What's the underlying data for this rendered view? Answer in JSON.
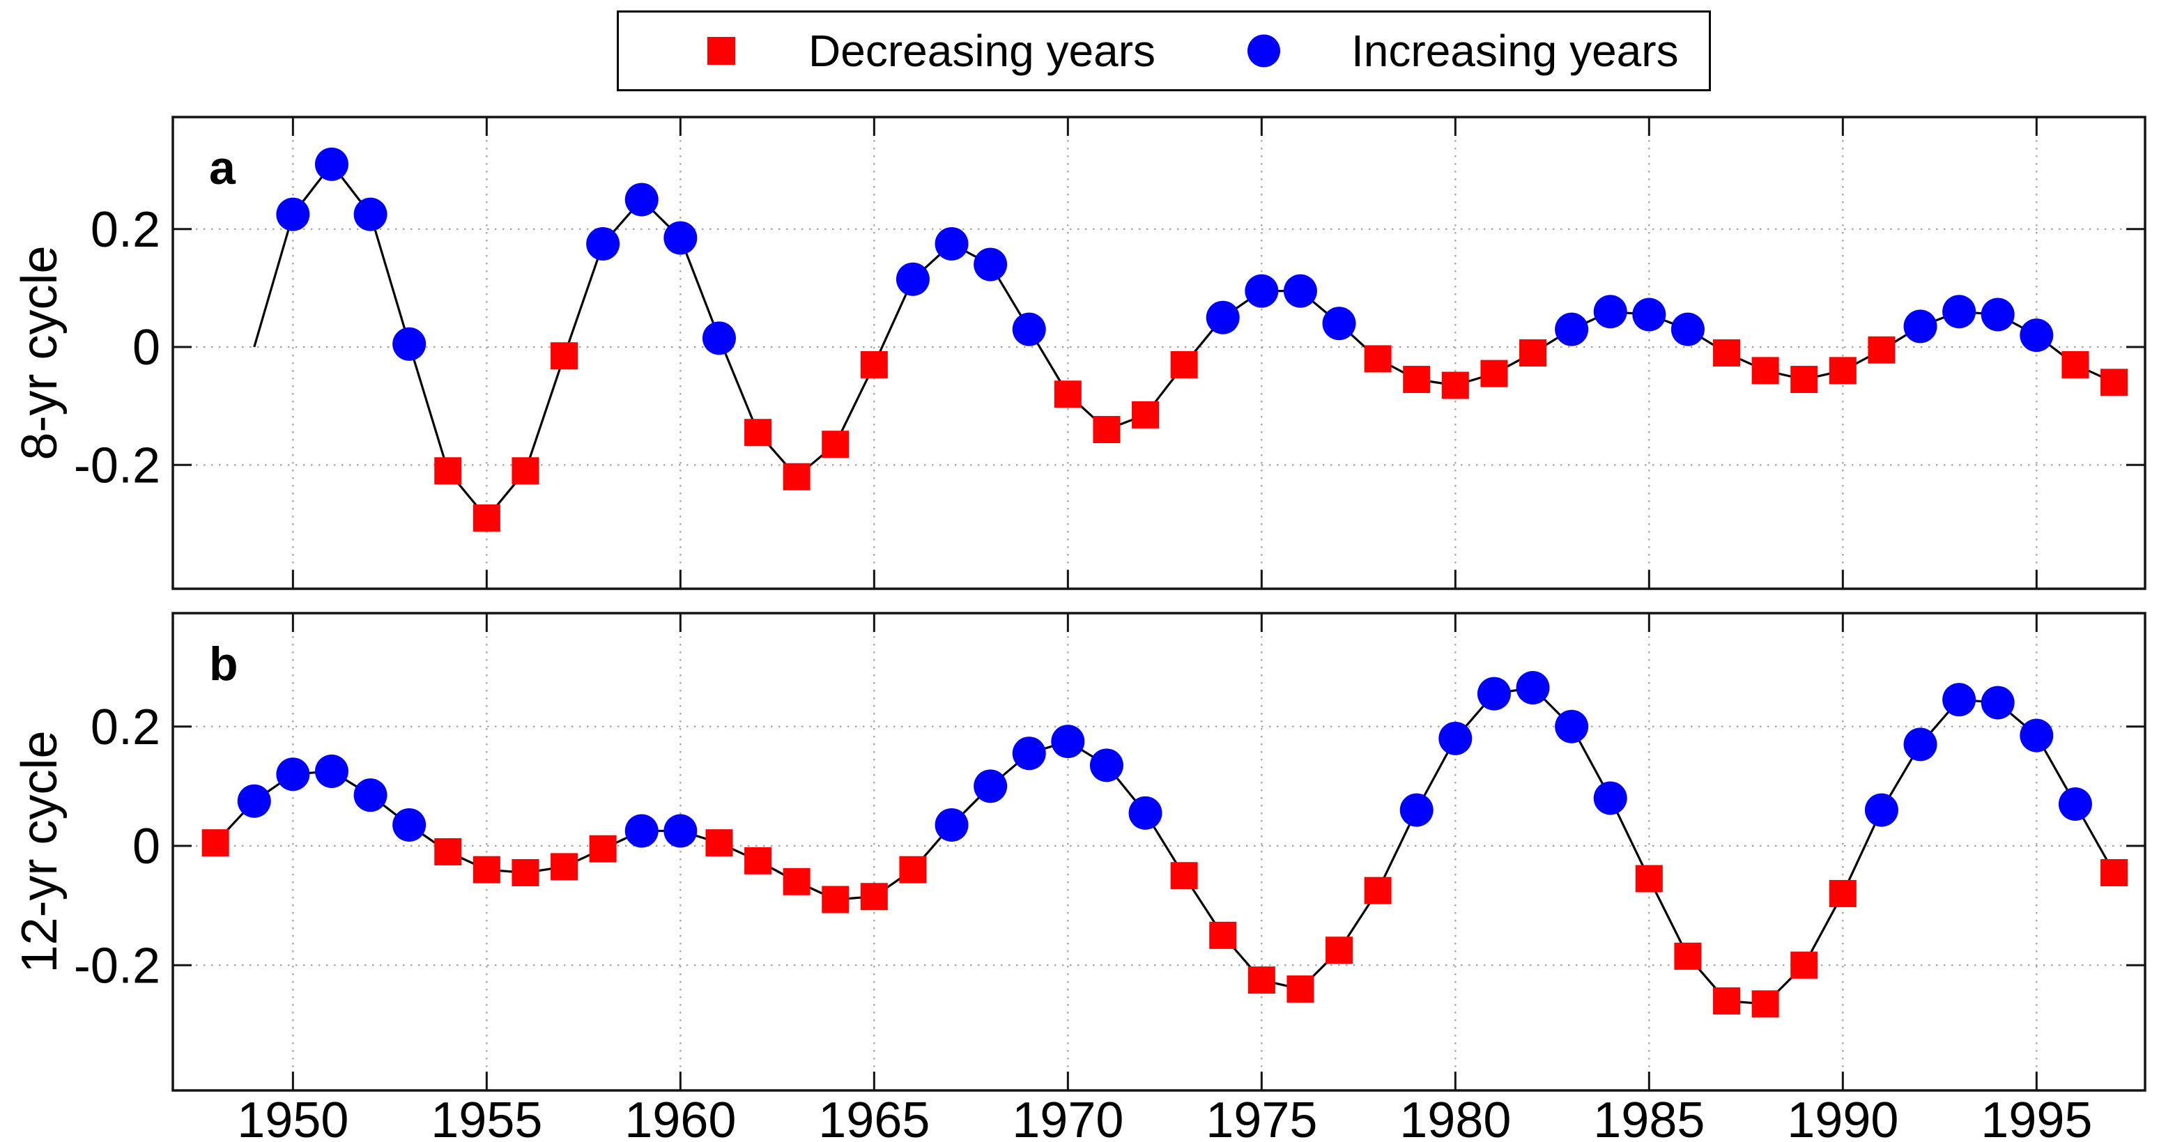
{
  "figure": {
    "background": "#ffffff",
    "legend": {
      "items": [
        {
          "label": "Decreasing years",
          "marker": "square",
          "color": "#ff0000"
        },
        {
          "label": "Increasing years",
          "marker": "circle",
          "color": "#0000ff"
        }
      ]
    }
  },
  "colors": {
    "increasing_marker": "#0000ff",
    "decreasing_marker": "#ff0000",
    "line": "#000000",
    "grid": "#a0a0a0",
    "axis": "#141414",
    "text": "#000000",
    "background": "#ffffff"
  },
  "chart_data": [
    {
      "type": "line",
      "panel_label": "a",
      "ylabel": "8-yr cycle",
      "xlim": [
        1946.9,
        1997.8
      ],
      "ylim": [
        -0.41,
        0.39
      ],
      "xticks": [
        1950,
        1955,
        1960,
        1965,
        1970,
        1975,
        1980,
        1985,
        1990,
        1995
      ],
      "yticks": [
        -0.2,
        0,
        0.2
      ],
      "ytick_labels": [
        "-0.2",
        "0",
        "0.2"
      ],
      "grid": true,
      "show_xticklabels": false,
      "x": [
        1949,
        1950,
        1951,
        1952,
        1953,
        1954,
        1955,
        1956,
        1957,
        1958,
        1959,
        1960,
        1961,
        1962,
        1963,
        1964,
        1965,
        1966,
        1967,
        1968,
        1969,
        1970,
        1971,
        1972,
        1973,
        1974,
        1975,
        1976,
        1977,
        1978,
        1979,
        1980,
        1981,
        1982,
        1983,
        1984,
        1985,
        1986,
        1987,
        1988,
        1989,
        1990,
        1991,
        1992,
        1993,
        1994,
        1995,
        1996,
        1997
      ],
      "y": [
        0,
        0.225,
        0.31,
        0.225,
        0.005,
        -0.21,
        -0.29,
        -0.21,
        -0.015,
        0.175,
        0.25,
        0.185,
        0.015,
        -0.145,
        -0.22,
        -0.165,
        -0.03,
        0.115,
        0.175,
        0.14,
        0.03,
        -0.08,
        -0.14,
        -0.115,
        -0.03,
        0.05,
        0.095,
        0.095,
        0.04,
        -0.02,
        -0.055,
        -0.065,
        -0.045,
        -0.01,
        0.03,
        0.06,
        0.055,
        0.03,
        -0.01,
        -0.04,
        -0.055,
        -0.04,
        -0.005,
        0.035,
        0.06,
        0.055,
        0.02,
        -0.03,
        -0.06
      ],
      "marker": [
        "none",
        "inc",
        "inc",
        "inc",
        "inc",
        "dec",
        "dec",
        "dec",
        "dec",
        "inc",
        "inc",
        "inc",
        "inc",
        "dec",
        "dec",
        "dec",
        "dec",
        "inc",
        "inc",
        "inc",
        "inc",
        "dec",
        "dec",
        "dec",
        "dec",
        "inc",
        "inc",
        "inc",
        "inc",
        "dec",
        "dec",
        "dec",
        "dec",
        "dec",
        "inc",
        "inc",
        "inc",
        "inc",
        "dec",
        "dec",
        "dec",
        "dec",
        "dec",
        "inc",
        "inc",
        "inc",
        "inc",
        "dec",
        "dec"
      ]
    },
    {
      "type": "line",
      "panel_label": "b",
      "ylabel": "12-yr cycle",
      "xlim": [
        1946.9,
        1997.8
      ],
      "ylim": [
        -0.41,
        0.39
      ],
      "xticks": [
        1950,
        1955,
        1960,
        1965,
        1970,
        1975,
        1980,
        1985,
        1990,
        1995
      ],
      "yticks": [
        -0.2,
        0,
        0.2
      ],
      "ytick_labels": [
        "-0.2",
        "0",
        "0.2"
      ],
      "xtick_labels": [
        "1950",
        "1955",
        "1960",
        "1965",
        "1970",
        "1975",
        "1980",
        "1985",
        "1990",
        "1995"
      ],
      "grid": true,
      "show_xticklabels": true,
      "x": [
        1948,
        1949,
        1950,
        1951,
        1952,
        1953,
        1954,
        1955,
        1956,
        1957,
        1958,
        1959,
        1960,
        1961,
        1962,
        1963,
        1964,
        1965,
        1966,
        1967,
        1968,
        1969,
        1970,
        1971,
        1972,
        1973,
        1974,
        1975,
        1976,
        1977,
        1978,
        1979,
        1980,
        1981,
        1982,
        1983,
        1984,
        1985,
        1986,
        1987,
        1988,
        1989,
        1990,
        1991,
        1992,
        1993,
        1994,
        1995,
        1996,
        1997
      ],
      "y": [
        0.005,
        0.075,
        0.12,
        0.125,
        0.085,
        0.035,
        -0.01,
        -0.04,
        -0.045,
        -0.035,
        -0.005,
        0.025,
        0.025,
        0.005,
        -0.025,
        -0.06,
        -0.09,
        -0.085,
        -0.04,
        0.035,
        0.1,
        0.155,
        0.175,
        0.135,
        0.055,
        -0.05,
        -0.15,
        -0.225,
        -0.24,
        -0.175,
        -0.075,
        0.06,
        0.18,
        0.255,
        0.265,
        0.2,
        0.08,
        -0.055,
        -0.185,
        -0.26,
        -0.265,
        -0.2,
        -0.08,
        0.06,
        0.17,
        0.245,
        0.24,
        0.185,
        0.07,
        -0.045
      ],
      "marker": [
        "dec",
        "inc",
        "inc",
        "inc",
        "inc",
        "inc",
        "dec",
        "dec",
        "dec",
        "dec",
        "dec",
        "inc",
        "inc",
        "dec",
        "dec",
        "dec",
        "dec",
        "dec",
        "dec",
        "inc",
        "inc",
        "inc",
        "inc",
        "inc",
        "inc",
        "dec",
        "dec",
        "dec",
        "dec",
        "dec",
        "dec",
        "inc",
        "inc",
        "inc",
        "inc",
        "inc",
        "inc",
        "dec",
        "dec",
        "dec",
        "dec",
        "dec",
        "dec",
        "inc",
        "inc",
        "inc",
        "inc",
        "inc",
        "inc",
        "dec"
      ]
    }
  ]
}
